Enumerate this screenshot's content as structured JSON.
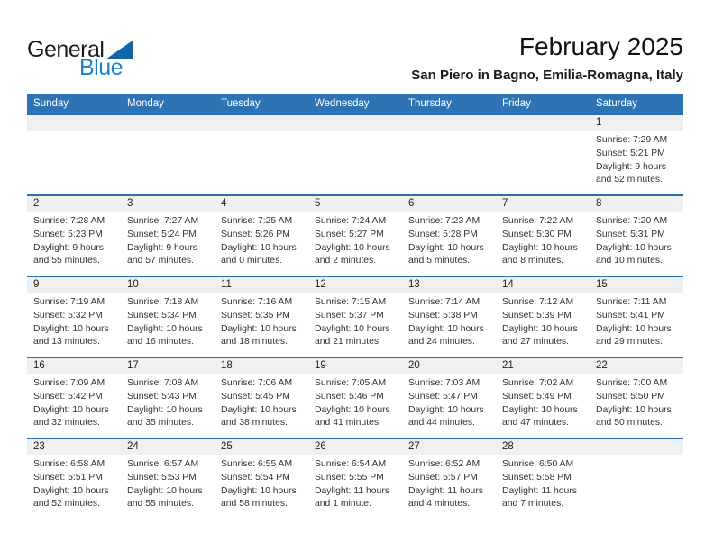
{
  "logo": {
    "general": "General",
    "blue": "Blue"
  },
  "header": {
    "title": "February 2025",
    "subtitle": "San Piero in Bagno, Emilia-Romagna, Italy"
  },
  "colors": {
    "header_blue": "#2E74B5",
    "week_line_blue": "#2C70AD",
    "day_band_gray": "#F0F0F0",
    "logo_text_blue": "#1D82C4",
    "logo_triangle_blue": "#1465A5"
  },
  "calendar": {
    "day_headers": [
      "Sunday",
      "Monday",
      "Tuesday",
      "Wednesday",
      "Thursday",
      "Friday",
      "Saturday"
    ],
    "labels": {
      "sunrise": "Sunrise:",
      "sunset": "Sunset:",
      "daylight": "Daylight:"
    },
    "weeks": [
      [
        null,
        null,
        null,
        null,
        null,
        null,
        {
          "day": "1",
          "sunrise": "7:29 AM",
          "sunset": "5:21 PM",
          "daylight_hours": "9 hours",
          "daylight_minutes": "and 52 minutes."
        }
      ],
      [
        {
          "day": "2",
          "sunrise": "7:28 AM",
          "sunset": "5:23 PM",
          "daylight_hours": "9 hours",
          "daylight_minutes": "and 55 minutes."
        },
        {
          "day": "3",
          "sunrise": "7:27 AM",
          "sunset": "5:24 PM",
          "daylight_hours": "9 hours",
          "daylight_minutes": "and 57 minutes."
        },
        {
          "day": "4",
          "sunrise": "7:25 AM",
          "sunset": "5:26 PM",
          "daylight_hours": "10 hours",
          "daylight_minutes": "and 0 minutes."
        },
        {
          "day": "5",
          "sunrise": "7:24 AM",
          "sunset": "5:27 PM",
          "daylight_hours": "10 hours",
          "daylight_minutes": "and 2 minutes."
        },
        {
          "day": "6",
          "sunrise": "7:23 AM",
          "sunset": "5:28 PM",
          "daylight_hours": "10 hours",
          "daylight_minutes": "and 5 minutes."
        },
        {
          "day": "7",
          "sunrise": "7:22 AM",
          "sunset": "5:30 PM",
          "daylight_hours": "10 hours",
          "daylight_minutes": "and 8 minutes."
        },
        {
          "day": "8",
          "sunrise": "7:20 AM",
          "sunset": "5:31 PM",
          "daylight_hours": "10 hours",
          "daylight_minutes": "and 10 minutes."
        }
      ],
      [
        {
          "day": "9",
          "sunrise": "7:19 AM",
          "sunset": "5:32 PM",
          "daylight_hours": "10 hours",
          "daylight_minutes": "and 13 minutes."
        },
        {
          "day": "10",
          "sunrise": "7:18 AM",
          "sunset": "5:34 PM",
          "daylight_hours": "10 hours",
          "daylight_minutes": "and 16 minutes."
        },
        {
          "day": "11",
          "sunrise": "7:16 AM",
          "sunset": "5:35 PM",
          "daylight_hours": "10 hours",
          "daylight_minutes": "and 18 minutes."
        },
        {
          "day": "12",
          "sunrise": "7:15 AM",
          "sunset": "5:37 PM",
          "daylight_hours": "10 hours",
          "daylight_minutes": "and 21 minutes."
        },
        {
          "day": "13",
          "sunrise": "7:14 AM",
          "sunset": "5:38 PM",
          "daylight_hours": "10 hours",
          "daylight_minutes": "and 24 minutes."
        },
        {
          "day": "14",
          "sunrise": "7:12 AM",
          "sunset": "5:39 PM",
          "daylight_hours": "10 hours",
          "daylight_minutes": "and 27 minutes."
        },
        {
          "day": "15",
          "sunrise": "7:11 AM",
          "sunset": "5:41 PM",
          "daylight_hours": "10 hours",
          "daylight_minutes": "and 29 minutes."
        }
      ],
      [
        {
          "day": "16",
          "sunrise": "7:09 AM",
          "sunset": "5:42 PM",
          "daylight_hours": "10 hours",
          "daylight_minutes": "and 32 minutes."
        },
        {
          "day": "17",
          "sunrise": "7:08 AM",
          "sunset": "5:43 PM",
          "daylight_hours": "10 hours",
          "daylight_minutes": "and 35 minutes."
        },
        {
          "day": "18",
          "sunrise": "7:06 AM",
          "sunset": "5:45 PM",
          "daylight_hours": "10 hours",
          "daylight_minutes": "and 38 minutes."
        },
        {
          "day": "19",
          "sunrise": "7:05 AM",
          "sunset": "5:46 PM",
          "daylight_hours": "10 hours",
          "daylight_minutes": "and 41 minutes."
        },
        {
          "day": "20",
          "sunrise": "7:03 AM",
          "sunset": "5:47 PM",
          "daylight_hours": "10 hours",
          "daylight_minutes": "and 44 minutes."
        },
        {
          "day": "21",
          "sunrise": "7:02 AM",
          "sunset": "5:49 PM",
          "daylight_hours": "10 hours",
          "daylight_minutes": "and 47 minutes."
        },
        {
          "day": "22",
          "sunrise": "7:00 AM",
          "sunset": "5:50 PM",
          "daylight_hours": "10 hours",
          "daylight_minutes": "and 50 minutes."
        }
      ],
      [
        {
          "day": "23",
          "sunrise": "6:58 AM",
          "sunset": "5:51 PM",
          "daylight_hours": "10 hours",
          "daylight_minutes": "and 52 minutes."
        },
        {
          "day": "24",
          "sunrise": "6:57 AM",
          "sunset": "5:53 PM",
          "daylight_hours": "10 hours",
          "daylight_minutes": "and 55 minutes."
        },
        {
          "day": "25",
          "sunrise": "6:55 AM",
          "sunset": "5:54 PM",
          "daylight_hours": "10 hours",
          "daylight_minutes": "and 58 minutes."
        },
        {
          "day": "26",
          "sunrise": "6:54 AM",
          "sunset": "5:55 PM",
          "daylight_hours": "11 hours",
          "daylight_minutes": "and 1 minute."
        },
        {
          "day": "27",
          "sunrise": "6:52 AM",
          "sunset": "5:57 PM",
          "daylight_hours": "11 hours",
          "daylight_minutes": "and 4 minutes."
        },
        {
          "day": "28",
          "sunrise": "6:50 AM",
          "sunset": "5:58 PM",
          "daylight_hours": "11 hours",
          "daylight_minutes": "and 7 minutes."
        },
        null
      ]
    ]
  }
}
